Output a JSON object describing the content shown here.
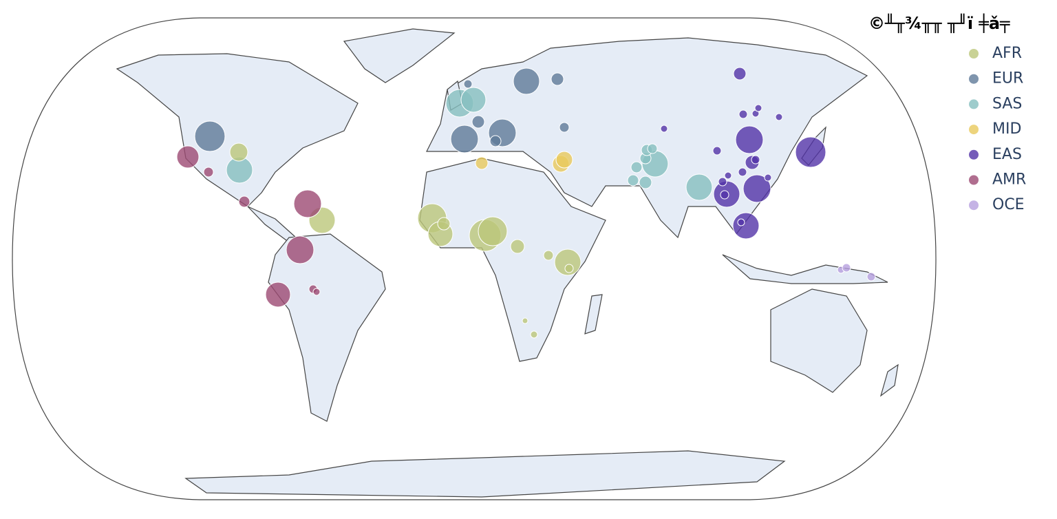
{
  "legend": {
    "title": "©╨╥¾╥╥ ╥╜ï ╪ǎ╤",
    "items": [
      {
        "name": "AFR",
        "color": "#bcc77a"
      },
      {
        "name": "EUR",
        "color": "#5f7b98"
      },
      {
        "name": "SAS",
        "color": "#86bfbf"
      },
      {
        "name": "MID",
        "color": "#e9c95c"
      },
      {
        "name": "EAS",
        "color": "#5233a8"
      },
      {
        "name": "AMR",
        "color": "#9c4a73"
      },
      {
        "name": "OCE",
        "color": "#b7a0de"
      }
    ]
  }
}
